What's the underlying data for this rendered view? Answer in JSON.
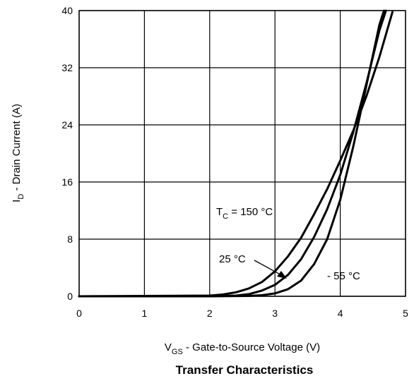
{
  "chart_data": {
    "type": "line",
    "title": "Transfer Characteristics",
    "xlabel": {
      "main": "V",
      "sub": "GS",
      "rest": " - Gate-to-Source Voltage (V)"
    },
    "ylabel": {
      "main": "I",
      "sub": "D",
      "rest": " - Drain Current  (A)"
    },
    "xlim": [
      0,
      5
    ],
    "ylim": [
      0,
      40
    ],
    "xticks": [
      0,
      1,
      2,
      3,
      4,
      5
    ],
    "yticks": [
      0,
      8,
      16,
      24,
      32,
      40
    ],
    "grid": true,
    "series": [
      {
        "name": "TC = 150 °C",
        "x": [
          0,
          1,
          2.0,
          2.2,
          2.4,
          2.6,
          2.8,
          3.0,
          3.2,
          3.4,
          3.6,
          3.8,
          4.0,
          4.2,
          4.4,
          4.6,
          4.8
        ],
        "y": [
          0,
          0.05,
          0.1,
          0.25,
          0.55,
          1.1,
          2.0,
          3.5,
          5.6,
          8.2,
          11.5,
          15.0,
          19.0,
          23.2,
          28.0,
          33.5,
          39.8
        ]
      },
      {
        "name": "25 °C",
        "x": [
          0,
          1,
          2.0,
          2.4,
          2.6,
          2.8,
          3.0,
          3.2,
          3.4,
          3.6,
          3.8,
          4.0,
          4.2,
          4.4,
          4.6,
          4.7
        ],
        "y": [
          0,
          0,
          0.02,
          0.1,
          0.3,
          0.8,
          1.6,
          3.0,
          5.2,
          8.3,
          12.2,
          17.0,
          23.0,
          29.8,
          37.2,
          40.0
        ]
      },
      {
        "name": "- 55 °C",
        "x": [
          0,
          1,
          2.0,
          2.6,
          2.8,
          3.0,
          3.2,
          3.4,
          3.6,
          3.8,
          4.0,
          4.2,
          4.4,
          4.6,
          4.67
        ],
        "y": [
          0,
          0,
          0,
          0.05,
          0.15,
          0.4,
          1.0,
          2.2,
          4.5,
          8.0,
          13.5,
          21.0,
          29.5,
          38.0,
          40.0
        ]
      }
    ],
    "annotations": [
      {
        "main": "T",
        "sub": "C",
        "rest": " = 150 °C"
      },
      {
        "text": "25 °C"
      },
      {
        "text": "- 55 °C"
      }
    ]
  }
}
